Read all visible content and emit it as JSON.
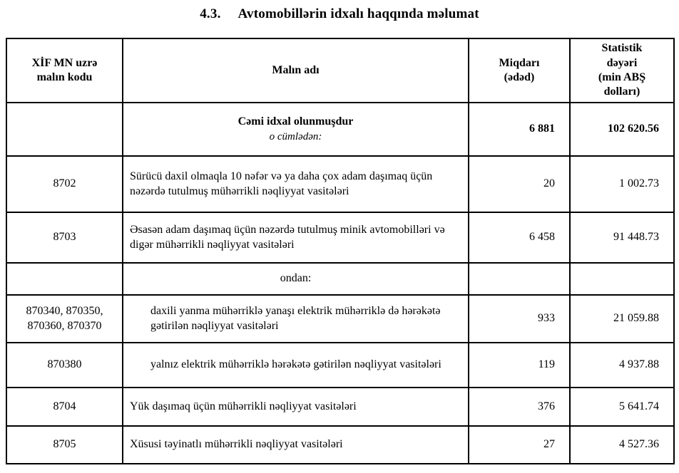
{
  "title": {
    "number": "4.3.",
    "text": "Avtomobillərin idxalı haqqında məlumat"
  },
  "table": {
    "columns": [
      {
        "label": "XİF MN uzrə malın kodu",
        "lines": [
          "XİF MN uzrə",
          "malın kodu"
        ]
      },
      {
        "label": "Malın adı",
        "lines": [
          "Malın adı"
        ]
      },
      {
        "label": "Miqdarı (ədəd)",
        "lines": [
          "Miqdarı",
          "(ədəd)"
        ]
      },
      {
        "label": "Statistik dəyəri (min ABŞ dolları)",
        "lines": [
          "Statistik",
          "dəyəri",
          "(min ABŞ",
          "dolları)"
        ]
      }
    ],
    "rows": [
      {
        "code": "",
        "name": "Cəmi idxal olunmuşdur",
        "subname": "o cümlədən:",
        "qty": "6 881",
        "value": "102 620.56"
      },
      {
        "code": "8702",
        "name": "Sürücü daxil olmaqla 10 nəfər və ya daha çox adam daşımaq üçün nəzərdə tutulmuş mühərrikli nəqliyyat vasitələri",
        "qty": "20",
        "value": "1 002.73"
      },
      {
        "code": "8703",
        "name": "Əsasən adam daşımaq üçün nəzərdə tutulmuş minik avtomobilləri və digər mühərrikli nəqliyyat vasitələri",
        "qty": "6 458",
        "value": "91 448.73"
      },
      {
        "code": "",
        "name": "ondan:",
        "qty": "",
        "value": ""
      },
      {
        "code": "870340, 870350, 870360, 870370",
        "name": "daxili yanma mühərriklə yanaşı elektrik mühərriklə də hərəkətə gətirilən nəqliyyat vasitələri",
        "qty": "933",
        "value": "21 059.88"
      },
      {
        "code": "870380",
        "name": "yalnız elektrik mühərriklə hərəkətə gətirilən nəqliyyat vasitələri",
        "qty": "119",
        "value": "4 937.88"
      },
      {
        "code": "8704",
        "name": "Yük daşımaq üçün mühərrikli nəqliyyat vasitələri",
        "qty": "376",
        "value": "5 641.74"
      },
      {
        "code": "8705",
        "name": "Xüsusi təyinatlı mühərrikli nəqliyyat vasitələri",
        "qty": "27",
        "value": "4 527.36"
      }
    ]
  }
}
